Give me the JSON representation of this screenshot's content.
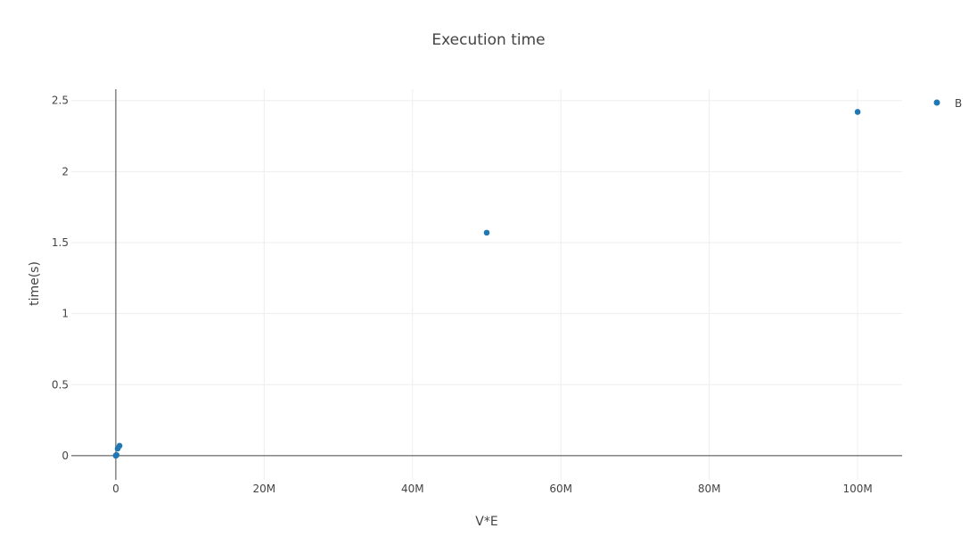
{
  "chart_data": {
    "type": "scatter",
    "title": "Execution time",
    "xlabel": "V*E",
    "ylabel": "time(s)",
    "xlim": [
      -6000000,
      106000000
    ],
    "ylim": [
      -0.17,
      2.58
    ],
    "x_ticks": [
      0,
      20000000,
      40000000,
      60000000,
      80000000,
      100000000
    ],
    "x_tick_labels": [
      "0",
      "20M",
      "40M",
      "60M",
      "80M",
      "100M"
    ],
    "y_ticks": [
      0,
      0.5,
      1,
      1.5,
      2,
      2.5
    ],
    "y_tick_labels": [
      "0",
      "0.5",
      "1",
      "1.5",
      "2",
      "2.5"
    ],
    "grid": true,
    "legend_position": "top-right",
    "colors": {
      "marker": "#1f77b4",
      "grid": "#eeeeee",
      "zero_line": "#444444",
      "text": "#444444"
    },
    "series": [
      {
        "name": "B",
        "x": [
          0,
          10000,
          100000,
          250000,
          500000,
          50000000,
          100000000
        ],
        "y": [
          0.0,
          0.002,
          0.005,
          0.05,
          0.07,
          1.57,
          2.42
        ]
      }
    ]
  }
}
